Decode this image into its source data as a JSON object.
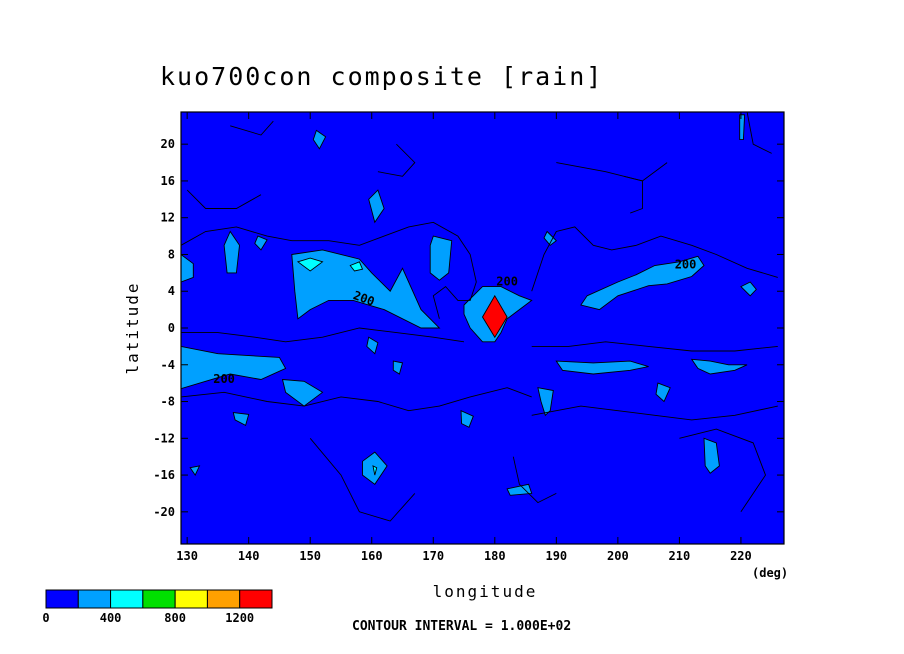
{
  "chart_data": {
    "type": "heatmap",
    "title": "kuo700con composite [rain]",
    "xlabel": "longitude",
    "ylabel": "latitude",
    "x_unit": "(deg)",
    "x_ticks": [
      130,
      140,
      150,
      160,
      170,
      180,
      190,
      200,
      210,
      220
    ],
    "y_ticks": [
      20,
      16,
      12,
      8,
      4,
      0,
      -4,
      -8,
      -12,
      -16,
      -20
    ],
    "xlim": [
      129,
      227
    ],
    "ylim": [
      -23.5,
      23.5
    ],
    "contour_interval_label": "CONTOUR INTERVAL = 1.000E+02",
    "contour_labels": [
      "200",
      "200",
      "200",
      "200"
    ],
    "colorbar": {
      "tick_labels": [
        "0",
        "400",
        "800",
        "1200"
      ],
      "tick_values": [
        0,
        400,
        800,
        1200
      ],
      "levels": [
        0,
        200,
        400,
        600,
        800,
        1000,
        1200,
        1400
      ],
      "colors": [
        "#0000ff",
        "#00a0ff",
        "#00ffff",
        "#00e000",
        "#ffff00",
        "#ffa000",
        "#ff0000"
      ]
    },
    "features": [
      {
        "lon": 180,
        "lat": 1.2,
        "level": "max ~1400",
        "color": "#ff0000"
      },
      {
        "lon": 150,
        "lat": 6,
        "level": "200-400"
      },
      {
        "lon": 160,
        "lat": -15,
        "level": "200-500"
      }
    ]
  }
}
